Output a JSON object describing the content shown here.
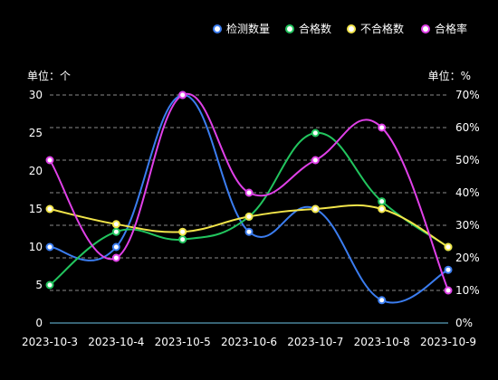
{
  "colors": {
    "background": "#000000",
    "text": "#ffffff",
    "grid": "#8a8a8a",
    "baseline": "#6ec6e8",
    "marker_fill": "#ffffff"
  },
  "chart_data": {
    "type": "line",
    "smooth": true,
    "grid": true,
    "legend_position": "top-right",
    "categories": [
      "2023-10-3",
      "2023-10-4",
      "2023-10-5",
      "2023-10-6",
      "2023-10-7",
      "2023-10-8",
      "2023-10-9"
    ],
    "left_axis": {
      "unit_label": "单位：个",
      "min": 0,
      "max": 30,
      "ticks": [
        0,
        5,
        10,
        15,
        20,
        25,
        30
      ]
    },
    "right_axis": {
      "unit_label": "单位：%",
      "min": 0,
      "max": 70,
      "ticks": [
        "0%",
        "10%",
        "20%",
        "30%",
        "40%",
        "50%",
        "60%",
        "70%"
      ]
    },
    "series": [
      {
        "name": "检测数量",
        "axis": "left",
        "color": "#3b7df0",
        "values": [
          10,
          10,
          30,
          12,
          15,
          3,
          7
        ]
      },
      {
        "name": "合格数",
        "axis": "left",
        "color": "#22c55e",
        "values": [
          5,
          12,
          11,
          14,
          25,
          16,
          10
        ]
      },
      {
        "name": "不合格数",
        "axis": "left",
        "color": "#f2e54a",
        "values": [
          15,
          13,
          12,
          14,
          15,
          15,
          10
        ]
      },
      {
        "name": "合格率",
        "axis": "right",
        "color": "#e040e8",
        "values": [
          50,
          20,
          70,
          40,
          50,
          60,
          10
        ]
      }
    ]
  }
}
